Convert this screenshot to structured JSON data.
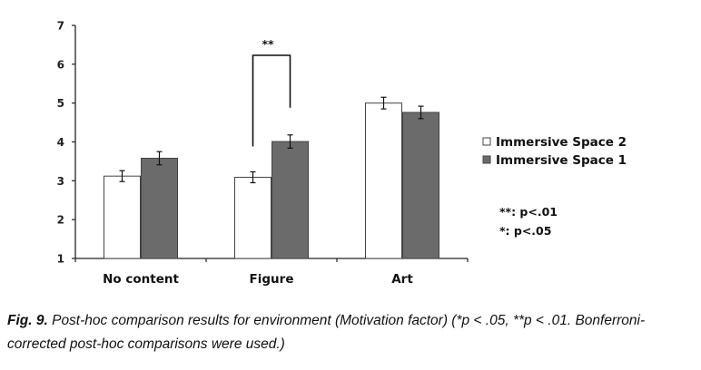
{
  "chart_data": {
    "type": "bar",
    "categories": [
      "No content",
      "Figure",
      "Art"
    ],
    "series": [
      {
        "name": "Immersive Space 2",
        "values": [
          3.12,
          3.09,
          5.0
        ],
        "errors": [
          0.14,
          0.14,
          0.15
        ],
        "color": "#ffffff"
      },
      {
        "name": "Immersive Space 1",
        "values": [
          3.58,
          4.01,
          4.76
        ],
        "errors": [
          0.17,
          0.17,
          0.16
        ],
        "color": "#6b6b6b"
      }
    ],
    "ylim": [
      1,
      7
    ],
    "yticks": [
      "1",
      "2",
      "3",
      "4",
      "5",
      "6",
      "7"
    ],
    "legend_position": "right",
    "significance": {
      "category": "Figure",
      "label": "**"
    },
    "notes": [
      "**: p<.01",
      "*: p<.05"
    ]
  },
  "caption": {
    "label": "Fig. 9.",
    "text": " Post-hoc comparison results for environment (Motivation factor) (*p < .05, **p < .01. Bonferroni-corrected post-hoc comparisons were used.)"
  }
}
